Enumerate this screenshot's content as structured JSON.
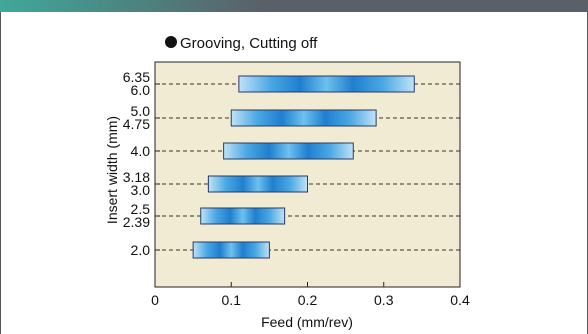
{
  "header_bar": {
    "gradient_start": "#3fa89a",
    "gradient_end": "#5a6068"
  },
  "chart_data": {
    "type": "bar",
    "subtype": "floating-range",
    "title": "Grooving, Cutting off",
    "title_marker": "●",
    "xlabel": "Feed (mm/rev)",
    "ylabel": "Insert width (mm)",
    "xlim": [
      0,
      0.4
    ],
    "xticks": [
      "0",
      "0.1",
      "0.2",
      "0.3",
      "0.4"
    ],
    "grid": "dashed horizontal lines at each range bar",
    "plot_background": "#f1ebd3",
    "bar_colors": {
      "edge": "#bfe3f8",
      "core": "#1f7fcf",
      "outline": "#2a3a60"
    },
    "ranges": [
      {
        "tick_labels": [
          "6.35",
          "6.0"
        ],
        "min": 0.11,
        "max": 0.34
      },
      {
        "tick_labels": [
          "5.0",
          "4.75"
        ],
        "min": 0.1,
        "max": 0.29
      },
      {
        "tick_labels": [
          "4.0"
        ],
        "min": 0.09,
        "max": 0.26
      },
      {
        "tick_labels": [
          "3.18",
          "3.0"
        ],
        "min": 0.07,
        "max": 0.2
      },
      {
        "tick_labels": [
          "2.5",
          "2.39"
        ],
        "min": 0.06,
        "max": 0.17
      },
      {
        "tick_labels": [
          "2.0"
        ],
        "min": 0.05,
        "max": 0.15
      }
    ]
  }
}
